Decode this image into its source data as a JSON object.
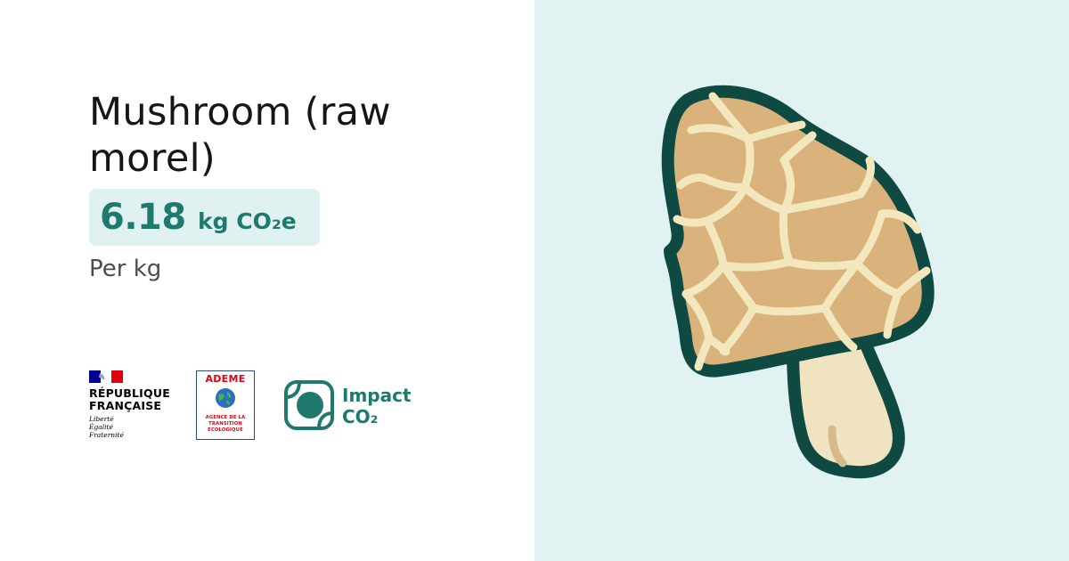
{
  "title": "Mushroom (raw morel)",
  "value": {
    "number": "6.18",
    "unit": "kg CO₂e",
    "per": "Per kg"
  },
  "logos": {
    "republique": {
      "line1": "RÉPUBLIQUE",
      "line2": "FRANÇAISE",
      "motto1": "Liberté",
      "motto2": "Égalité",
      "motto3": "Fraternité"
    },
    "ademe": {
      "name": "ADEME",
      "sub1": "AGENCE DE LA",
      "sub2": "TRANSITION",
      "sub3": "ÉCOLOGIQUE"
    },
    "impact": {
      "word": "Impact",
      "co2": "CO₂"
    }
  },
  "illustration": {
    "icon": "morel-mushroom-icon"
  },
  "colors": {
    "accent": "#1f7a6d",
    "right_background": "#e0f2f1",
    "value_background": "#dff2f1",
    "cap": "#d9b27c",
    "ridges": "#f3e8bd",
    "outline": "#0f4a42",
    "stem": "#efe3c2"
  }
}
